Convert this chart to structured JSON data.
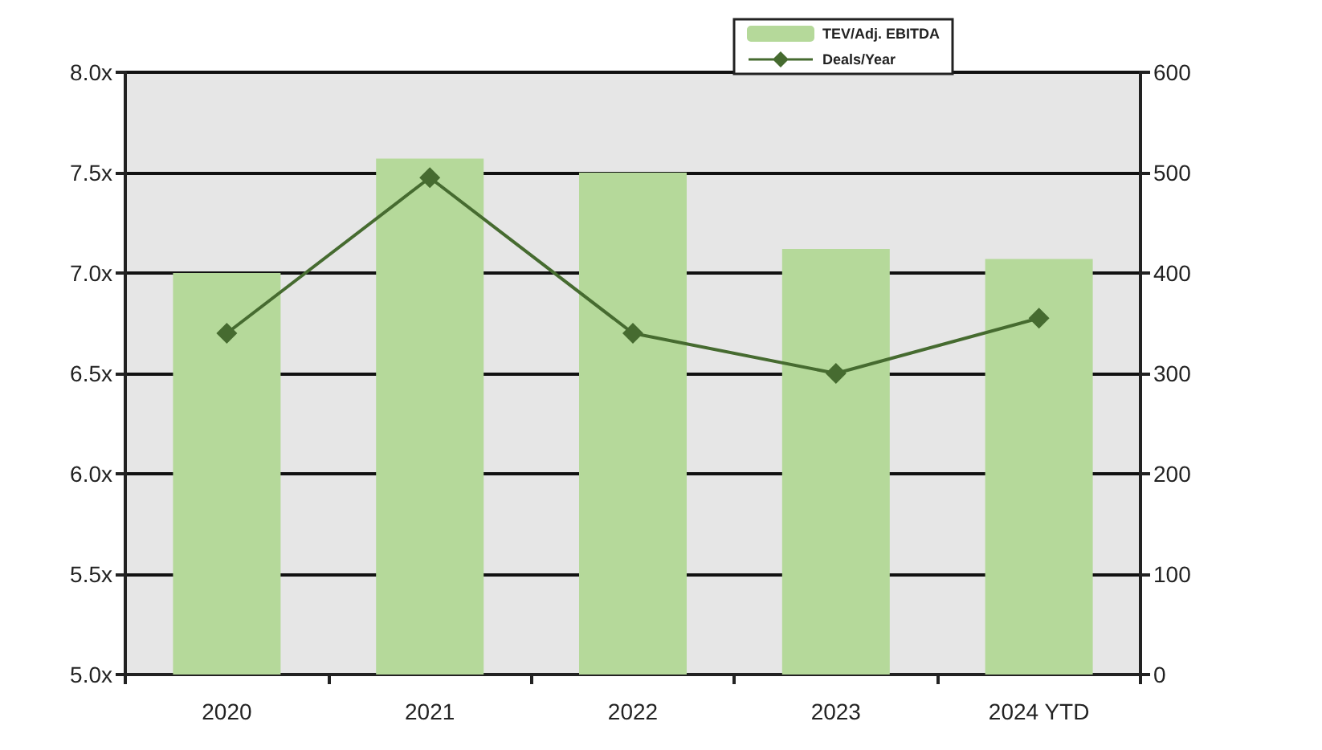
{
  "chart_data": {
    "type": "bar",
    "categories": [
      "2020",
      "2021",
      "2022",
      "2023",
      "2024 YTD"
    ],
    "series": [
      {
        "name": "TEV/Adj. EBITDA",
        "color": "#b5d99a",
        "values": [
          7.0,
          7.57,
          7.5,
          7.12,
          7.07
        ]
      },
      {
        "name": "Deals/Year",
        "type": "line",
        "axis": "y2",
        "color": "#466b30",
        "marker": "diamond",
        "values": [
          340,
          495,
          340,
          300,
          355
        ]
      }
    ],
    "ylim": [
      5,
      8
    ],
    "yticks": [
      {
        "value": 5,
        "label": "5.0x"
      },
      {
        "value": 5.5,
        "label": "5.5x"
      },
      {
        "value": 6,
        "label": "6.0x"
      },
      {
        "value": 6.5,
        "label": "6.5x"
      },
      {
        "value": 7,
        "label": "7.0x"
      },
      {
        "value": 7.5,
        "label": "7.5x"
      },
      {
        "value": 8,
        "label": "8.0x"
      }
    ],
    "y2lim": [
      0,
      600
    ],
    "y2ticks": [
      0,
      100,
      200,
      300,
      400,
      500,
      600
    ],
    "grid": "y",
    "legend": "top right"
  }
}
